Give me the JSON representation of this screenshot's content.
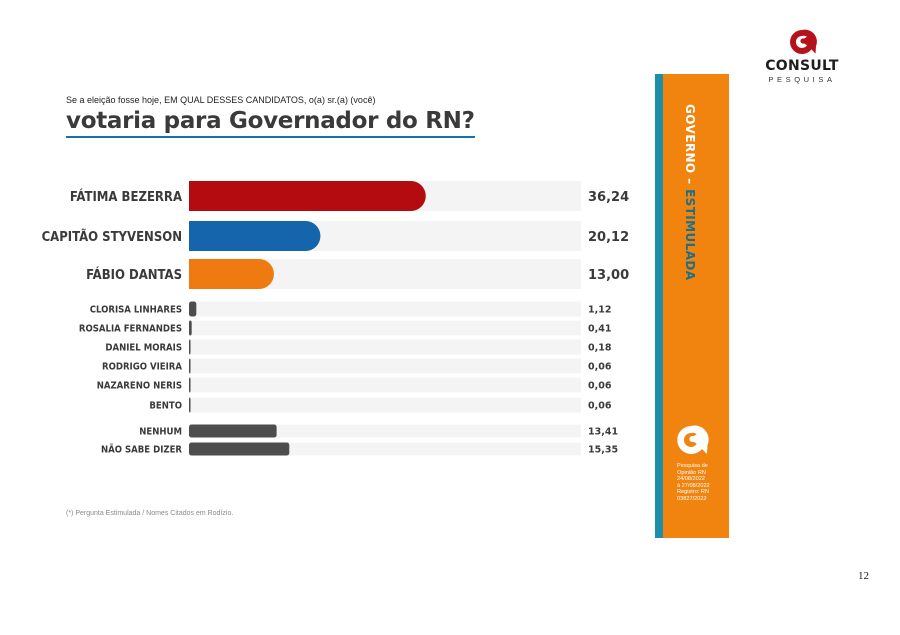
{
  "logo": {
    "brand": "CONSULT",
    "sub": "PESQUISA"
  },
  "question": "Se a eleição fosse hoje, EM QUAL DESSES CANDIDATOS, o(a) sr.(a) (você)",
  "headline": "votaria para Governador do RN?",
  "chart_data": {
    "type": "bar",
    "orientation": "horizontal",
    "title": "votaria para Governador do RN?",
    "xlim": [
      0,
      60
    ],
    "categories": [
      "FÁTIMA BEZERRA",
      "CAPITÃO STYVENSON",
      "FÁBIO DANTAS",
      "CLORISA LINHARES",
      "ROSALIA FERNANDES",
      "DANIEL MORAIS",
      "RODRIGO VIEIRA",
      "NAZARENO NERIS",
      "BENTO",
      "NENHUM",
      "NÃO SABE DIZER"
    ],
    "values": [
      36.24,
      20.12,
      13.0,
      1.12,
      0.41,
      0.18,
      0.06,
      0.06,
      0.06,
      13.41,
      15.35
    ],
    "value_labels": [
      "36,24",
      "20,12",
      "13,00",
      "1,12",
      "0,41",
      "0,18",
      "0,06",
      "0,06",
      "0,06",
      "13,41",
      "15,35"
    ],
    "colors": [
      "#b30b10",
      "#1565ad",
      "#f07a12",
      "#4d4d4d",
      "#4d4d4d",
      "#4d4d4d",
      "#4d4d4d",
      "#4d4d4d",
      "#4d4d4d",
      "#4d4d4d",
      "#4d4d4d"
    ],
    "groups": [
      "main",
      "main",
      "main",
      "minor",
      "minor",
      "minor",
      "minor",
      "minor",
      "minor",
      "other",
      "other"
    ]
  },
  "footnote": "(*) Pergunta Estimulada / Nomes Citados em Rodízio.",
  "side": {
    "title_white": "GOVERNO – ",
    "title_teal": "ESTIMULADA",
    "meta": [
      "Pesquisa de",
      "Opinião RN",
      "24/08/2022",
      "à 27/08/2022",
      "Registro: RN",
      "03827/2022"
    ]
  },
  "page_number": "12"
}
